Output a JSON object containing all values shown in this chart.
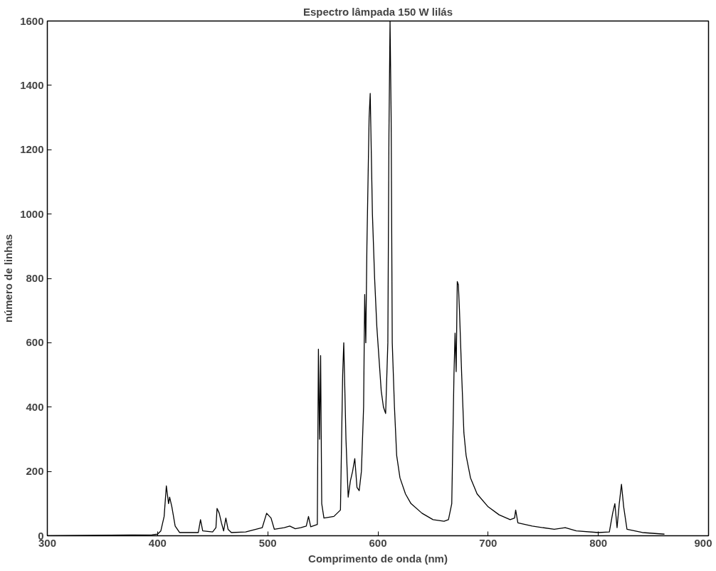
{
  "chart_data": {
    "type": "line",
    "title": "Espectro lâmpada 150 W lilás",
    "xlabel": "Comprimento de onda (nm)",
    "ylabel": "número de linhas",
    "xlim": [
      300,
      900
    ],
    "xticks": [
      300,
      400,
      500,
      600,
      700,
      800,
      900
    ],
    "ylim": [
      0,
      1600
    ],
    "yticks": [
      0,
      200,
      400,
      600,
      800,
      1000,
      1200,
      1400,
      1600
    ],
    "grid": false,
    "marker": "none",
    "line_style": "solid",
    "series": [
      {
        "color": "#000000",
        "x": [
          300,
          395,
          400,
          403,
          406,
          408,
          410,
          411,
          413,
          416,
          420,
          437,
          439,
          441,
          450,
          453,
          454,
          456,
          458,
          460,
          462,
          464,
          467,
          480,
          495,
          499,
          503,
          506,
          515,
          520,
          525,
          530,
          535,
          537,
          539,
          545,
          546,
          547,
          548,
          549,
          551,
          560,
          566,
          568,
          569,
          571,
          573,
          575,
          577,
          579,
          581,
          583,
          585,
          587,
          588,
          589,
          590,
          592,
          593,
          595,
          597,
          599,
          601,
          603,
          605,
          607,
          609,
          610,
          611,
          612,
          613,
          615,
          617,
          620,
          625,
          630,
          640,
          650,
          660,
          664,
          667,
          669,
          670,
          671,
          672,
          673,
          674,
          676,
          678,
          680,
          684,
          690,
          700,
          710,
          720,
          724,
          725,
          727,
          740,
          760,
          770,
          780,
          800,
          810,
          813,
          815,
          817,
          819,
          821,
          823,
          826,
          840,
          860
        ],
        "values": [
          0,
          3,
          5,
          15,
          60,
          155,
          100,
          120,
          90,
          30,
          10,
          10,
          50,
          15,
          12,
          25,
          85,
          70,
          40,
          15,
          55,
          20,
          10,
          12,
          25,
          70,
          55,
          20,
          25,
          30,
          22,
          25,
          30,
          60,
          28,
          35,
          580,
          300,
          560,
          100,
          55,
          60,
          80,
          500,
          600,
          300,
          120,
          170,
          200,
          240,
          150,
          140,
          200,
          400,
          750,
          600,
          900,
          1300,
          1375,
          1000,
          800,
          650,
          550,
          450,
          400,
          380,
          600,
          1250,
          1600,
          1300,
          600,
          400,
          250,
          180,
          130,
          100,
          70,
          50,
          45,
          50,
          100,
          500,
          630,
          510,
          790,
          780,
          700,
          500,
          320,
          250,
          180,
          130,
          90,
          65,
          50,
          55,
          80,
          40,
          30,
          20,
          25,
          15,
          10,
          12,
          70,
          100,
          25,
          100,
          160,
          90,
          20,
          10,
          5
        ]
      }
    ]
  }
}
